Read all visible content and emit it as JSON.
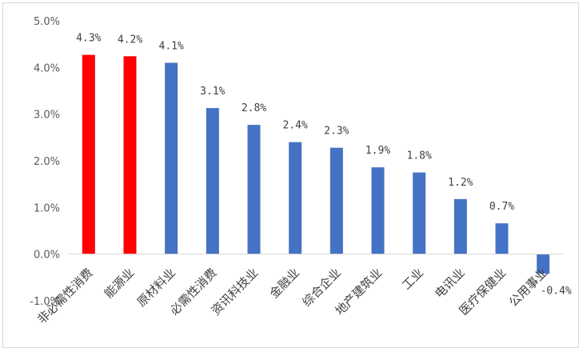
{
  "chart_data": {
    "type": "bar",
    "title": "",
    "xlabel": "",
    "ylabel": "",
    "ylim": [
      -1.0,
      5.0
    ],
    "yticks": [
      "-1.0%",
      "0.0%",
      "1.0%",
      "2.0%",
      "3.0%",
      "4.0%",
      "5.0%"
    ],
    "ytick_values": [
      -1.0,
      0.0,
      1.0,
      2.0,
      3.0,
      4.0,
      5.0
    ],
    "grid": false,
    "legend": "none",
    "categories": [
      "非必需性消费",
      "能源业",
      "原材料业",
      "必需性消费",
      "资讯科技业",
      "金融业",
      "综合企业",
      "地产建筑业",
      "工业",
      "电讯业",
      "医疗保健业",
      "公用事业"
    ],
    "values": [
      4.27,
      4.24,
      4.1,
      3.13,
      2.77,
      2.4,
      2.28,
      1.86,
      1.75,
      1.18,
      0.66,
      -0.42
    ],
    "data_labels": [
      "4.3%",
      "4.2%",
      "4.1%",
      "3.1%",
      "2.8%",
      "2.4%",
      "2.3%",
      "1.9%",
      "1.8%",
      "1.2%",
      "0.7%",
      "-0.4%"
    ],
    "bar_colors": [
      "#ff0000",
      "#ff0000",
      "#4472c4",
      "#4472c4",
      "#4472c4",
      "#4472c4",
      "#4472c4",
      "#4472c4",
      "#4472c4",
      "#4472c4",
      "#4472c4",
      "#4472c4"
    ],
    "axis_color": "#d9d9d9"
  }
}
